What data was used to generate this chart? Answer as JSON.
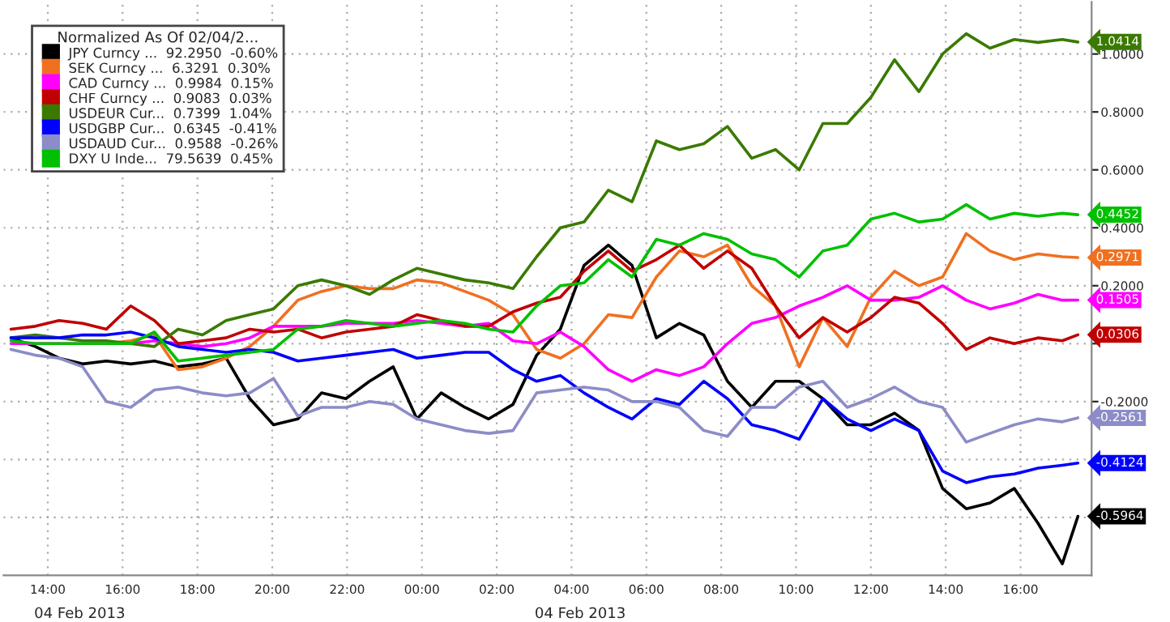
{
  "chart_data": {
    "type": "line",
    "x": [
      "2013-02-03T13:01",
      "2013-02-03T13:40",
      "2013-02-03T14:18",
      "2013-02-03T14:56",
      "2013-02-03T15:34",
      "2013-02-03T16:13",
      "2013-02-03T16:51",
      "2013-02-03T17:29",
      "2013-02-03T18:08",
      "2013-02-03T18:46",
      "2013-02-03T19:24",
      "2013-02-03T20:02",
      "2013-02-03T20:41",
      "2013-02-03T21:19",
      "2013-02-03T21:58",
      "2013-02-03T22:36",
      "2013-02-03T23:14",
      "2013-02-03T23:52",
      "2013-02-04T00:31",
      "2013-02-04T01:09",
      "2013-02-04T01:47",
      "2013-02-04T02:26",
      "2013-02-04T03:04",
      "2013-02-04T03:42",
      "2013-02-04T04:20",
      "2013-02-04T04:59",
      "2013-02-04T05:37",
      "2013-02-04T06:16",
      "2013-02-04T06:53",
      "2013-02-04T07:32",
      "2013-02-04T08:10",
      "2013-02-04T08:49",
      "2013-02-04T09:27",
      "2013-02-04T10:05",
      "2013-02-04T10:43",
      "2013-02-04T11:22",
      "2013-02-04T12:00",
      "2013-02-04T12:38",
      "2013-02-04T13:17",
      "2013-02-04T13:55",
      "2013-02-04T14:33",
      "2013-02-04T15:11",
      "2013-02-04T15:50",
      "2013-02-04T16:28",
      "2013-02-04T17:07",
      "2013-02-04T17:32"
    ],
    "series": [
      {
        "name": "JPY Curncy ...  92.2950  -0.60%",
        "color": "#000000",
        "values": [
          0.02,
          -0.01,
          -0.05,
          -0.07,
          -0.06,
          -0.07,
          -0.06,
          -0.08,
          -0.07,
          -0.05,
          -0.19,
          -0.28,
          -0.26,
          -0.17,
          -0.19,
          -0.13,
          -0.08,
          -0.26,
          -0.17,
          -0.22,
          -0.26,
          -0.21,
          -0.04,
          0.05,
          0.27,
          0.34,
          0.27,
          0.02,
          0.07,
          0.03,
          -0.13,
          -0.22,
          -0.13,
          -0.13,
          -0.19,
          -0.28,
          -0.28,
          -0.24,
          -0.3,
          -0.5,
          -0.57,
          -0.55,
          -0.5,
          -0.62,
          -0.76,
          -0.5964
        ],
        "value_labels": [
          null,
          null,
          null,
          null,
          null,
          null,
          null,
          null,
          null,
          null,
          null,
          null,
          null,
          null,
          null,
          null,
          null,
          null,
          null,
          null,
          null,
          null,
          null,
          null,
          null,
          null,
          null,
          null,
          null,
          null,
          null,
          null,
          null,
          null,
          null,
          null,
          null,
          null,
          null,
          null,
          null,
          null,
          null,
          null,
          null,
          "-0.5964"
        ]
      },
      {
        "name": "SEK Curncy ...  6.3291  0.30%",
        "color": "#f07020",
        "values": [
          null,
          null,
          null,
          0.0,
          0.0,
          0.01,
          0.03,
          -0.09,
          -0.08,
          -0.05,
          -0.01,
          0.06,
          0.15,
          0.18,
          0.2,
          0.19,
          0.19,
          0.22,
          0.21,
          0.18,
          0.15,
          0.1,
          -0.02,
          -0.05,
          0.0,
          0.1,
          0.09,
          0.23,
          0.32,
          0.3,
          0.34,
          0.2,
          0.13,
          -0.08,
          0.09,
          -0.01,
          0.16,
          0.25,
          0.2,
          0.23,
          0.38,
          0.32,
          0.29,
          0.31,
          0.3,
          0.2971
        ],
        "value_labels": [
          null,
          null,
          null,
          null,
          null,
          null,
          null,
          null,
          null,
          null,
          null,
          null,
          null,
          null,
          null,
          null,
          null,
          null,
          null,
          null,
          null,
          null,
          null,
          null,
          null,
          null,
          null,
          null,
          null,
          null,
          null,
          null,
          null,
          null,
          null,
          null,
          null,
          null,
          null,
          null,
          null,
          null,
          null,
          null,
          null,
          "0.2971"
        ]
      },
      {
        "name": "CAD Curncy ...  0.9984  0.15%",
        "color": "#ff00ff",
        "values": [
          0.0,
          0.0,
          0.0,
          0.0,
          0.0,
          0.0,
          0.01,
          0.0,
          -0.01,
          0.0,
          0.02,
          0.06,
          0.06,
          0.06,
          0.07,
          0.07,
          0.07,
          0.08,
          0.07,
          0.06,
          0.07,
          0.01,
          0.0,
          0.04,
          -0.01,
          -0.09,
          -0.13,
          -0.09,
          -0.11,
          -0.08,
          0.0,
          0.07,
          0.09,
          0.13,
          0.16,
          0.2,
          0.15,
          0.15,
          0.16,
          0.2,
          0.15,
          0.12,
          0.14,
          0.17,
          0.15,
          0.1505
        ],
        "value_labels": [
          null,
          null,
          null,
          null,
          null,
          null,
          null,
          null,
          null,
          null,
          null,
          null,
          null,
          null,
          null,
          null,
          null,
          null,
          null,
          null,
          null,
          null,
          null,
          null,
          null,
          null,
          null,
          null,
          null,
          null,
          null,
          null,
          null,
          null,
          null,
          null,
          null,
          null,
          null,
          null,
          null,
          null,
          null,
          null,
          null,
          "0.1505"
        ]
      },
      {
        "name": "CHF Curncy ...  0.9083  0.03%",
        "color": "#c00000",
        "values": [
          0.05,
          0.06,
          0.08,
          0.07,
          0.05,
          0.13,
          0.08,
          0.0,
          0.01,
          0.02,
          0.05,
          0.04,
          0.05,
          0.02,
          0.04,
          0.05,
          0.06,
          0.1,
          0.08,
          0.06,
          0.06,
          0.11,
          0.14,
          0.16,
          0.25,
          0.32,
          0.25,
          0.29,
          0.34,
          0.26,
          0.32,
          0.26,
          0.13,
          0.02,
          0.09,
          0.04,
          0.09,
          0.16,
          0.14,
          0.07,
          -0.02,
          0.02,
          0.0,
          0.02,
          0.01,
          0.0306
        ],
        "value_labels": [
          null,
          null,
          null,
          null,
          null,
          null,
          null,
          null,
          null,
          null,
          null,
          null,
          null,
          null,
          null,
          null,
          null,
          null,
          null,
          null,
          null,
          null,
          null,
          null,
          null,
          null,
          null,
          null,
          null,
          null,
          null,
          null,
          null,
          null,
          null,
          null,
          null,
          null,
          null,
          null,
          null,
          null,
          null,
          null,
          null,
          "0.0306"
        ]
      },
      {
        "name": "USDEUR Cur...  0.7399  1.04%",
        "color": "#3a7a00",
        "values": [
          0.02,
          0.03,
          0.02,
          0.01,
          0.01,
          0.0,
          -0.01,
          0.05,
          0.03,
          0.08,
          0.1,
          0.12,
          0.2,
          0.22,
          0.2,
          0.17,
          0.22,
          0.26,
          0.24,
          0.22,
          0.21,
          0.19,
          0.3,
          0.4,
          0.42,
          0.53,
          0.49,
          0.7,
          0.67,
          0.69,
          0.75,
          0.64,
          0.67,
          0.6,
          0.76,
          0.76,
          0.85,
          0.98,
          0.87,
          1.0,
          1.07,
          1.02,
          1.05,
          1.04,
          1.05,
          1.0414
        ],
        "value_labels": [
          null,
          null,
          null,
          null,
          null,
          null,
          null,
          null,
          null,
          null,
          null,
          null,
          null,
          null,
          null,
          null,
          null,
          null,
          null,
          null,
          null,
          null,
          null,
          null,
          null,
          null,
          null,
          null,
          null,
          null,
          null,
          null,
          null,
          null,
          null,
          null,
          null,
          null,
          null,
          null,
          null,
          null,
          null,
          null,
          null,
          "1.0414"
        ]
      },
      {
        "name": "USDGBP Cur...  0.6345  -0.41%",
        "color": "#0000ff",
        "values": [
          0.02,
          0.02,
          0.02,
          0.03,
          0.03,
          0.04,
          0.02,
          -0.01,
          -0.02,
          -0.03,
          -0.02,
          -0.03,
          -0.06,
          -0.05,
          -0.04,
          -0.03,
          -0.02,
          -0.05,
          -0.04,
          -0.03,
          -0.03,
          -0.09,
          -0.13,
          -0.11,
          -0.17,
          -0.22,
          -0.26,
          -0.19,
          -0.21,
          -0.13,
          -0.19,
          -0.28,
          -0.3,
          -0.33,
          -0.19,
          -0.26,
          -0.3,
          -0.26,
          -0.3,
          -0.44,
          -0.48,
          -0.46,
          -0.45,
          -0.43,
          -0.42,
          -0.4124
        ],
        "value_labels": [
          null,
          null,
          null,
          null,
          null,
          null,
          null,
          null,
          null,
          null,
          null,
          null,
          null,
          null,
          null,
          null,
          null,
          null,
          null,
          null,
          null,
          null,
          null,
          null,
          null,
          null,
          null,
          null,
          null,
          null,
          null,
          null,
          null,
          null,
          null,
          null,
          null,
          null,
          null,
          null,
          null,
          null,
          null,
          null,
          null,
          "-0.4124"
        ]
      },
      {
        "name": "USDAUD Cur...  0.9588  -0.26%",
        "color": "#8c8cc8",
        "values": [
          -0.02,
          -0.04,
          -0.05,
          -0.08,
          -0.2,
          -0.22,
          -0.16,
          -0.15,
          -0.17,
          -0.18,
          -0.17,
          -0.12,
          -0.25,
          -0.22,
          -0.22,
          -0.2,
          -0.21,
          -0.26,
          -0.28,
          -0.3,
          -0.31,
          -0.3,
          -0.17,
          -0.16,
          -0.15,
          -0.16,
          -0.2,
          -0.2,
          -0.22,
          -0.3,
          -0.32,
          -0.22,
          -0.22,
          -0.15,
          -0.13,
          -0.22,
          -0.19,
          -0.15,
          -0.2,
          -0.22,
          -0.34,
          -0.31,
          -0.28,
          -0.26,
          -0.27,
          -0.2561
        ],
        "value_labels": [
          null,
          null,
          null,
          null,
          null,
          null,
          null,
          null,
          null,
          null,
          null,
          null,
          null,
          null,
          null,
          null,
          null,
          null,
          null,
          null,
          null,
          null,
          null,
          null,
          null,
          null,
          null,
          null,
          null,
          null,
          null,
          null,
          null,
          null,
          null,
          null,
          null,
          null,
          null,
          null,
          null,
          null,
          null,
          null,
          null,
          "-0.2561"
        ]
      },
      {
        "name": "DXY U Inde...  79.5639  0.45%",
        "color": "#00c000",
        "values": [
          0.01,
          0.0,
          0.0,
          0.0,
          0.0,
          0.0,
          0.04,
          -0.06,
          -0.05,
          -0.04,
          -0.03,
          -0.02,
          0.05,
          0.06,
          0.08,
          0.07,
          0.06,
          0.07,
          0.08,
          0.07,
          0.05,
          0.04,
          0.13,
          0.2,
          0.21,
          0.29,
          0.23,
          0.36,
          0.34,
          0.38,
          0.36,
          0.31,
          0.29,
          0.23,
          0.32,
          0.34,
          0.43,
          0.45,
          0.42,
          0.43,
          0.48,
          0.43,
          0.45,
          0.44,
          0.45,
          0.4452
        ],
        "value_labels": [
          null,
          null,
          null,
          null,
          null,
          null,
          null,
          null,
          null,
          null,
          null,
          null,
          null,
          null,
          null,
          null,
          null,
          null,
          null,
          null,
          null,
          null,
          null,
          null,
          null,
          null,
          null,
          null,
          null,
          null,
          null,
          null,
          null,
          null,
          null,
          null,
          null,
          null,
          null,
          null,
          null,
          null,
          null,
          null,
          null,
          "0.4452"
        ]
      }
    ],
    "legend_title": "Normalized As Of 02/04/2...",
    "legend": "top left",
    "xlim": [
      "2013-02-03T12:49",
      "2013-02-04T17:54"
    ],
    "xticks": [
      {
        "value": "2013-02-03T14:00",
        "label": "14:00"
      },
      {
        "value": "2013-02-03T16:00",
        "label": "16:00"
      },
      {
        "value": "2013-02-03T18:00",
        "label": "18:00"
      },
      {
        "value": "2013-02-03T20:00",
        "label": "20:00"
      },
      {
        "value": "2013-02-03T22:00",
        "label": "22:00"
      },
      {
        "value": "2013-02-04T00:00",
        "label": "00:00"
      },
      {
        "value": "2013-02-04T02:00",
        "label": "02:00"
      },
      {
        "value": "2013-02-04T04:00",
        "label": "04:00"
      },
      {
        "value": "2013-02-04T06:00",
        "label": "06:00"
      },
      {
        "value": "2013-02-04T08:00",
        "label": "08:00"
      },
      {
        "value": "2013-02-04T10:00",
        "label": "10:00"
      },
      {
        "value": "2013-02-04T12:00",
        "label": "12:00"
      },
      {
        "value": "2013-02-04T14:00",
        "label": "14:00"
      },
      {
        "value": "2013-02-04T16:00",
        "label": "16:00"
      }
    ],
    "ylim": [
      -0.8,
      1.18
    ],
    "yticks": [
      {
        "value": -0.6,
        "label": null
      },
      {
        "value": -0.4,
        "label": null
      },
      {
        "value": -0.2,
        "label": "-0.2000"
      },
      {
        "value": 0.0,
        "label": null
      },
      {
        "value": 0.2,
        "label": "0.2000"
      },
      {
        "value": 0.4,
        "label": "0.4000"
      },
      {
        "value": 0.6,
        "label": "0.6000"
      },
      {
        "value": 0.8,
        "label": "0.8000"
      },
      {
        "value": 1.0,
        "label": "1.0000"
      }
    ],
    "annotations": [
      "04 Feb 2013",
      "04 Feb 2013"
    ],
    "grid": true,
    "line_style": "solid",
    "marker": "none"
  }
}
